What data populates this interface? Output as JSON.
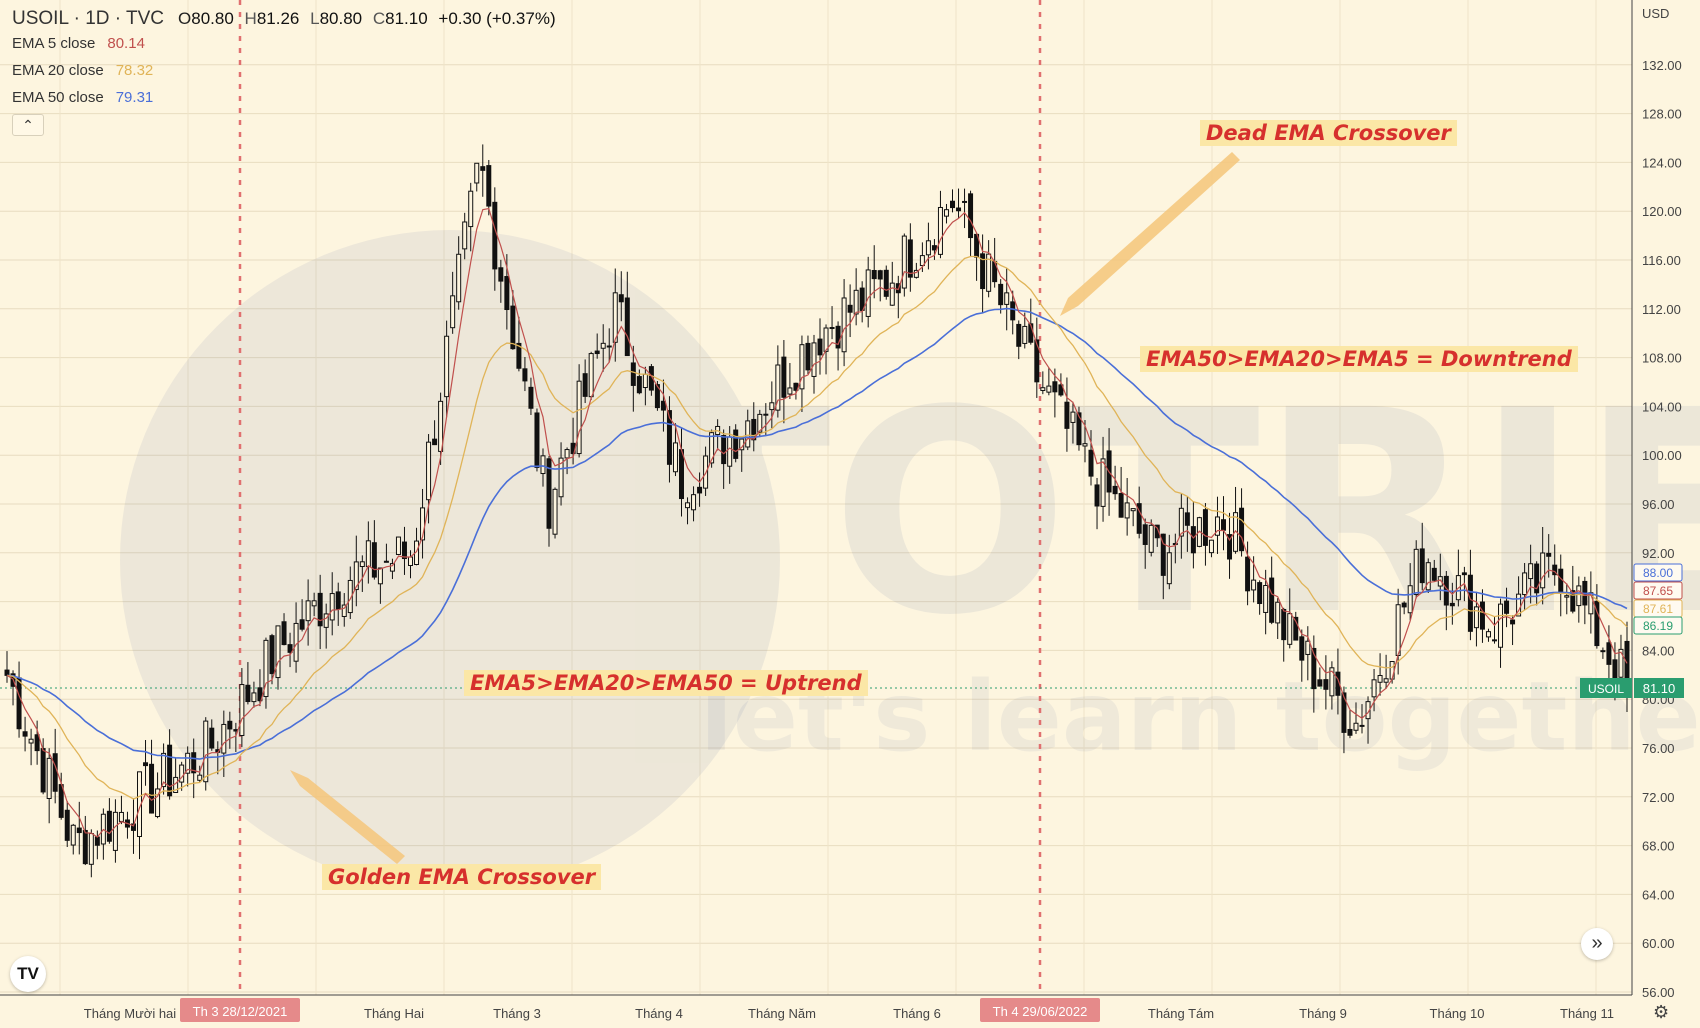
{
  "header": {
    "symbol": "USOIL · 1D · TVC",
    "open_label": "O",
    "open": "80.80",
    "high_label": "H",
    "high": "81.26",
    "low_label": "L",
    "low": "80.80",
    "close_label": "C",
    "close": "81.10",
    "change": "+0.30 (+0.37%)"
  },
  "indicators": [
    {
      "label": "EMA 5 close",
      "value": "80.14",
      "color": "#c0504d"
    },
    {
      "label": "EMA 20 close",
      "value": "78.32",
      "color": "#e0b458"
    },
    {
      "label": "EMA 50 close",
      "value": "79.31",
      "color": "#4a6fd8"
    }
  ],
  "currency": "USD",
  "collapse_icon": "chevron-up-icon",
  "annotations": {
    "dead_cross": "Dead EMA Crossover",
    "downtrend": "EMA50>EMA20>EMA5 = Downtrend",
    "uptrend": "EMA5>EMA20>EMA50 = Uptrend",
    "golden_cross": "Golden EMA Crossover"
  },
  "colors": {
    "background": "#fdf5df",
    "candle": "#111111",
    "ema5": "#c0504d",
    "ema20": "#e0b458",
    "ema50": "#4a6fd8",
    "price_line": "#2a9d6f",
    "crosshair": "#e07070",
    "annotation_text": "#d6302d",
    "annotation_bg": "#fbe7a6"
  },
  "chart_data": {
    "type": "candlestick",
    "title": "USOIL · 1D · TVC",
    "y_ticks": [
      56,
      60,
      64,
      68,
      72,
      76,
      80,
      84,
      88,
      92,
      96,
      100,
      104,
      108,
      112,
      116,
      120,
      124,
      128,
      132
    ],
    "y_tick_labels": [
      "56.00",
      "60.00",
      "64.00",
      "68.00",
      "72.00",
      "76.00",
      "80.00",
      "84.00",
      "88.00",
      "92.00",
      "96.00",
      "100.00",
      "104.00",
      "108.00",
      "112.00",
      "116.00",
      "120.00",
      "124.00",
      "128.00",
      "132.00"
    ],
    "ylim": [
      56,
      135
    ],
    "x_labels": [
      "Tháng Mười hai",
      "Tháng Hai",
      "Tháng 3",
      "Tháng 4",
      "Tháng Năm",
      "Tháng 6",
      "Tháng Tám",
      "Tháng 9",
      "Tháng 10",
      "Tháng 11"
    ],
    "crosshair_dates": [
      "Th 3 28/12/2021",
      "Th 4 29/06/2022"
    ],
    "price_labels": [
      {
        "label": "USOIL",
        "value": "81.10",
        "color": "#2a9d6f"
      },
      {
        "value": "88.00",
        "color": "#4a6fd8"
      },
      {
        "value": "87.65",
        "color": "#c0504d"
      },
      {
        "value": "87.61",
        "color": "#e0b458"
      },
      {
        "value": "86.19",
        "color": "#2a9d6f"
      }
    ],
    "close_series": [
      {
        "date": "Nov 2021",
        "close": 82
      },
      {
        "date": "early Dec 2021",
        "close": 68
      },
      {
        "date": "mid Dec 2021",
        "close": 72
      },
      {
        "date": "28 Dec 2021",
        "close": 76
      },
      {
        "date": "mid Jan 2022",
        "close": 84
      },
      {
        "date": "early Feb 2022",
        "close": 90
      },
      {
        "date": "late Feb 2022",
        "close": 92
      },
      {
        "date": "08 Mar 2022",
        "close": 124
      },
      {
        "date": "mid Mar 2022",
        "close": 96
      },
      {
        "date": "late Mar 2022",
        "close": 112
      },
      {
        "date": "mid Apr 2022",
        "close": 98
      },
      {
        "date": "late Apr 2022",
        "close": 103
      },
      {
        "date": "mid May 2022",
        "close": 110
      },
      {
        "date": "late May 2022",
        "close": 114
      },
      {
        "date": "mid Jun 2022",
        "close": 121
      },
      {
        "date": "29 Jun 2022",
        "close": 109
      },
      {
        "date": "mid Jul 2022",
        "close": 99
      },
      {
        "date": "early Aug 2022",
        "close": 92
      },
      {
        "date": "late Aug 2022",
        "close": 95
      },
      {
        "date": "mid Sep 2022",
        "close": 85
      },
      {
        "date": "late Sep 2022",
        "close": 78
      },
      {
        "date": "early Oct 2022",
        "close": 92
      },
      {
        "date": "late Oct 2022",
        "close": 86
      },
      {
        "date": "early Nov 2022",
        "close": 91
      },
      {
        "date": "latest",
        "close": 81.1
      }
    ],
    "series": [
      {
        "name": "EMA 5 close",
        "last": 80.14
      },
      {
        "name": "EMA 20 close",
        "last": 78.32
      },
      {
        "name": "EMA 50 close",
        "last": 79.31
      }
    ],
    "grid": true
  }
}
